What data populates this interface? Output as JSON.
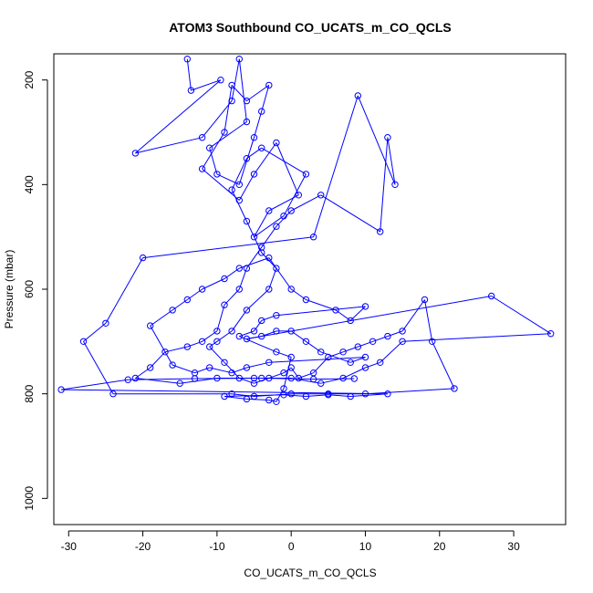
{
  "chart_data": {
    "type": "line",
    "title": "ATOM3 Southbound CO_UCATS_m_CO_QCLS",
    "xlabel": "CO_UCATS_m_CO_QCLS",
    "ylabel": "Pressure (mbar)",
    "xlim": [
      -32,
      37
    ],
    "ylim": [
      1050,
      150
    ],
    "y_reversed": true,
    "grid": false,
    "legend": "none",
    "line_color": "#0000ff",
    "marker": "open-circle",
    "x_ticks": [
      -30,
      -20,
      -10,
      0,
      10,
      20,
      30
    ],
    "x_tick_labels": [
      "-30",
      "-20",
      "-10",
      "0",
      "10",
      "20",
      "30"
    ],
    "y_ticks": [
      200,
      400,
      600,
      800,
      1000
    ],
    "y_tick_labels": [
      "200",
      "400",
      "600",
      "800",
      "1000"
    ],
    "series": [
      {
        "points": [
          [
            -14,
            160
          ],
          [
            -13.5,
            220
          ],
          [
            -9.5,
            200
          ],
          [
            -21,
            340
          ],
          [
            -12,
            310
          ],
          [
            -8,
            240
          ],
          [
            -7,
            160
          ],
          [
            -6,
            280
          ],
          [
            -11,
            330
          ],
          [
            -10,
            380
          ],
          [
            -7,
            400
          ],
          [
            -5,
            310
          ],
          [
            -4,
            260
          ],
          [
            -3,
            210
          ],
          [
            -6,
            240
          ],
          [
            -8,
            210
          ],
          [
            -9,
            300
          ],
          [
            -12,
            370
          ],
          [
            -7,
            430
          ],
          [
            -5,
            380
          ],
          [
            -2,
            320
          ],
          [
            1,
            420
          ],
          [
            -3,
            450
          ],
          [
            -5,
            500
          ],
          [
            -1,
            460
          ],
          [
            2,
            380
          ],
          [
            -4,
            330
          ],
          [
            -6,
            350
          ],
          [
            -8,
            410
          ],
          [
            -6,
            470
          ],
          [
            -4,
            530
          ],
          [
            -2,
            560
          ],
          [
            -3,
            600
          ],
          [
            -6,
            640
          ],
          [
            -8,
            680
          ],
          [
            -10,
            700
          ],
          [
            -11,
            710
          ],
          [
            -9,
            740
          ],
          [
            -7,
            770
          ],
          [
            -5,
            780
          ],
          [
            -3,
            770
          ],
          [
            -1,
            760
          ],
          [
            0,
            750
          ],
          [
            1,
            770
          ],
          [
            3,
            760
          ],
          [
            5,
            730
          ],
          [
            7,
            720
          ],
          [
            9,
            710
          ],
          [
            11,
            700
          ],
          [
            13,
            690
          ],
          [
            15,
            680
          ],
          [
            18,
            620
          ],
          [
            19,
            700
          ],
          [
            22,
            790
          ],
          [
            10,
            800
          ],
          [
            5,
            800
          ],
          [
            0,
            800
          ],
          [
            -5,
            805
          ],
          [
            -8,
            800
          ],
          [
            -24,
            800
          ],
          [
            -28,
            700
          ],
          [
            -25,
            665
          ],
          [
            -20,
            540
          ],
          [
            3,
            500
          ],
          [
            9,
            230
          ],
          [
            14,
            400
          ],
          [
            13,
            310
          ],
          [
            12,
            490
          ],
          [
            4,
            420
          ],
          [
            0,
            450
          ],
          [
            -2,
            480
          ],
          [
            -4,
            520
          ],
          [
            -6,
            560
          ],
          [
            -7,
            600
          ],
          [
            -9,
            630
          ],
          [
            -10,
            680
          ],
          [
            -12,
            700
          ],
          [
            -14,
            710
          ],
          [
            -17,
            720
          ],
          [
            -19,
            750
          ],
          [
            -21,
            770
          ],
          [
            -15,
            780
          ],
          [
            -10,
            770
          ],
          [
            -5,
            770
          ],
          [
            0,
            770
          ],
          [
            4,
            780
          ],
          [
            7,
            770
          ],
          [
            10,
            750
          ],
          [
            12,
            740
          ],
          [
            15,
            700
          ],
          [
            35,
            685
          ],
          [
            27,
            613
          ],
          [
            -6,
            695
          ],
          [
            -4,
            690
          ],
          [
            -2,
            680
          ],
          [
            0,
            680
          ],
          [
            2,
            700
          ],
          [
            4,
            720
          ],
          [
            8,
            740
          ],
          [
            10,
            730
          ],
          [
            -3,
            740
          ],
          [
            -6,
            750
          ],
          [
            -8,
            760
          ],
          [
            -11,
            750
          ],
          [
            -13,
            760
          ],
          [
            -16,
            745
          ],
          [
            -19,
            670
          ],
          [
            -16,
            640
          ],
          [
            -14,
            620
          ],
          [
            -12,
            600
          ],
          [
            -9,
            580
          ],
          [
            -7,
            560
          ],
          [
            -3,
            540
          ],
          [
            0,
            600
          ],
          [
            2,
            620
          ],
          [
            6,
            640
          ],
          [
            8,
            660
          ],
          [
            10,
            633
          ],
          [
            -2,
            650
          ],
          [
            -4,
            660
          ],
          [
            -5,
            680
          ],
          [
            -7,
            690
          ],
          [
            -2,
            720
          ],
          [
            0,
            730
          ],
          [
            -1,
            790
          ],
          [
            -2,
            815
          ],
          [
            -3,
            812
          ],
          [
            -6,
            810
          ],
          [
            -9,
            805
          ],
          [
            -1,
            802
          ],
          [
            2,
            805
          ],
          [
            5,
            802
          ],
          [
            8,
            805
          ],
          [
            13,
            800
          ],
          [
            -31,
            792
          ],
          [
            -22,
            773
          ],
          [
            -13,
            771
          ],
          [
            -4,
            770
          ],
          [
            3,
            772
          ],
          [
            8.5,
            771
          ]
        ]
      }
    ]
  }
}
